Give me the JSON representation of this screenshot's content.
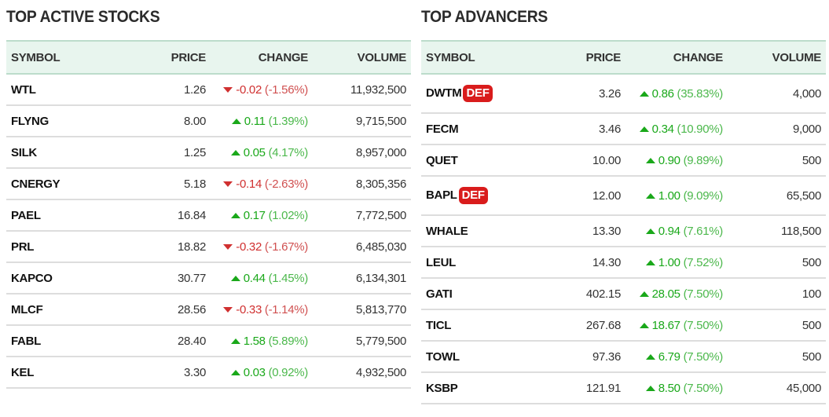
{
  "colors": {
    "up": "#1aa81a",
    "down": "#d03030",
    "header_bg": "#e8f5ee",
    "badge": "#d91c1c"
  },
  "active": {
    "title": "TOP ACTIVE STOCKS",
    "columns": [
      "SYMBOL",
      "PRICE",
      "CHANGE",
      "VOLUME"
    ],
    "rows": [
      {
        "symbol": "WTL",
        "price": "1.26",
        "change": "-0.02",
        "pct": "(-1.56%)",
        "dir": "down",
        "volume": "11,932,500"
      },
      {
        "symbol": "FLYNG",
        "price": "8.00",
        "change": "0.11",
        "pct": "(1.39%)",
        "dir": "up",
        "volume": "9,715,500"
      },
      {
        "symbol": "SILK",
        "price": "1.25",
        "change": "0.05",
        "pct": "(4.17%)",
        "dir": "up",
        "volume": "8,957,000"
      },
      {
        "symbol": "CNERGY",
        "price": "5.18",
        "change": "-0.14",
        "pct": "(-2.63%)",
        "dir": "down",
        "volume": "8,305,356"
      },
      {
        "symbol": "PAEL",
        "price": "16.84",
        "change": "0.17",
        "pct": "(1.02%)",
        "dir": "up",
        "volume": "7,772,500"
      },
      {
        "symbol": "PRL",
        "price": "18.82",
        "change": "-0.32",
        "pct": "(-1.67%)",
        "dir": "down",
        "volume": "6,485,030"
      },
      {
        "symbol": "KAPCO",
        "price": "30.77",
        "change": "0.44",
        "pct": "(1.45%)",
        "dir": "up",
        "volume": "6,134,301"
      },
      {
        "symbol": "MLCF",
        "price": "28.56",
        "change": "-0.33",
        "pct": "(-1.14%)",
        "dir": "down",
        "volume": "5,813,770"
      },
      {
        "symbol": "FABL",
        "price": "28.40",
        "change": "1.58",
        "pct": "(5.89%)",
        "dir": "up",
        "volume": "5,779,500"
      },
      {
        "symbol": "KEL",
        "price": "3.30",
        "change": "0.03",
        "pct": "(0.92%)",
        "dir": "up",
        "volume": "4,932,500"
      }
    ]
  },
  "advancers": {
    "title": "TOP ADVANCERS",
    "columns": [
      "SYMBOL",
      "PRICE",
      "CHANGE",
      "VOLUME"
    ],
    "rows": [
      {
        "symbol": "DWTM",
        "badge": "DEF",
        "price": "3.26",
        "change": "0.86",
        "pct": "(35.83%)",
        "dir": "up",
        "volume": "4,000"
      },
      {
        "symbol": "FECM",
        "price": "3.46",
        "change": "0.34",
        "pct": "(10.90%)",
        "dir": "up",
        "volume": "9,000"
      },
      {
        "symbol": "QUET",
        "price": "10.00",
        "change": "0.90",
        "pct": "(9.89%)",
        "dir": "up",
        "volume": "500"
      },
      {
        "symbol": "BAPL",
        "badge": "DEF",
        "price": "12.00",
        "change": "1.00",
        "pct": "(9.09%)",
        "dir": "up",
        "volume": "65,500"
      },
      {
        "symbol": "WHALE",
        "price": "13.30",
        "change": "0.94",
        "pct": "(7.61%)",
        "dir": "up",
        "volume": "118,500"
      },
      {
        "symbol": "LEUL",
        "price": "14.30",
        "change": "1.00",
        "pct": "(7.52%)",
        "dir": "up",
        "volume": "500"
      },
      {
        "symbol": "GATI",
        "price": "402.15",
        "change": "28.05",
        "pct": "(7.50%)",
        "dir": "up",
        "volume": "100"
      },
      {
        "symbol": "TICL",
        "price": "267.68",
        "change": "18.67",
        "pct": "(7.50%)",
        "dir": "up",
        "volume": "500"
      },
      {
        "symbol": "TOWL",
        "price": "97.36",
        "change": "6.79",
        "pct": "(7.50%)",
        "dir": "up",
        "volume": "500"
      },
      {
        "symbol": "KSBP",
        "price": "121.91",
        "change": "8.50",
        "pct": "(7.50%)",
        "dir": "up",
        "volume": "45,000"
      }
    ]
  }
}
